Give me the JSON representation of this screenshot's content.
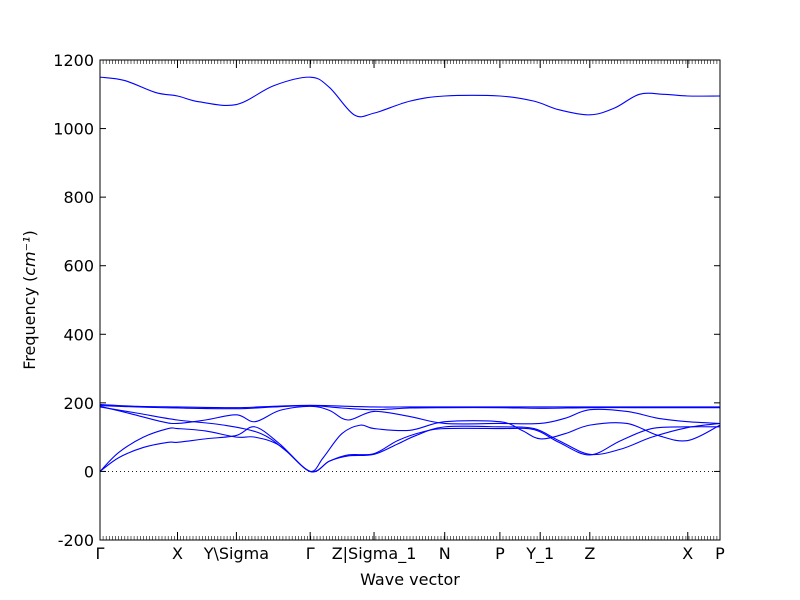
{
  "chart_data": {
    "type": "line",
    "title": "",
    "xlabel": "Wave vector",
    "ylabel": "Frequency",
    "ylabel_unit": "cm⁻¹",
    "ylim": [
      -200,
      1200
    ],
    "yticks": [
      -200,
      0,
      200,
      400,
      600,
      800,
      1000,
      1200
    ],
    "xlim": [
      0,
      1
    ],
    "grid": false,
    "legend": "none",
    "line_color": "#0000ff",
    "zero_line": true,
    "high_symmetry_points": [
      {
        "label": "Γ",
        "x": 0.0
      },
      {
        "label": "X",
        "x": 0.125
      },
      {
        "label": "Y\\Sigma",
        "x": 0.22
      },
      {
        "label": "Γ",
        "x": 0.339
      },
      {
        "label": "Z|Sigma_1",
        "x": 0.442
      },
      {
        "label": "N",
        "x": 0.556
      },
      {
        "label": "P",
        "x": 0.645
      },
      {
        "label": "Y_1",
        "x": 0.71
      },
      {
        "label": "Z",
        "x": 0.79
      },
      {
        "label": "X",
        "x": 0.948
      },
      {
        "label": "P",
        "x": 1.0
      }
    ],
    "series": [
      {
        "values": [
          [
            0,
            1150
          ],
          [
            0.04,
            1140
          ],
          [
            0.09,
            1105
          ],
          [
            0.125,
            1095
          ],
          [
            0.16,
            1078
          ],
          [
            0.22,
            1070
          ],
          [
            0.28,
            1125
          ],
          [
            0.339,
            1150
          ],
          [
            0.37,
            1120
          ],
          [
            0.41,
            1040
          ],
          [
            0.442,
            1045
          ],
          [
            0.5,
            1080
          ],
          [
            0.556,
            1095
          ],
          [
            0.645,
            1095
          ],
          [
            0.7,
            1080
          ],
          [
            0.74,
            1055
          ],
          [
            0.79,
            1040
          ],
          [
            0.83,
            1060
          ],
          [
            0.87,
            1100
          ],
          [
            0.91,
            1100
          ],
          [
            0.948,
            1095
          ],
          [
            1.0,
            1095
          ]
        ]
      },
      {
        "values": [
          [
            0,
            195
          ],
          [
            0.06,
            190
          ],
          [
            0.125,
            188
          ],
          [
            0.22,
            186
          ],
          [
            0.28,
            190
          ],
          [
            0.339,
            193
          ],
          [
            0.4,
            190
          ],
          [
            0.442,
            188
          ],
          [
            0.5,
            188
          ],
          [
            0.556,
            188
          ],
          [
            0.645,
            188
          ],
          [
            0.71,
            188
          ],
          [
            0.79,
            188
          ],
          [
            0.87,
            188
          ],
          [
            0.948,
            188
          ],
          [
            1.0,
            188
          ]
        ]
      },
      {
        "values": [
          [
            0,
            192
          ],
          [
            0.06,
            188
          ],
          [
            0.125,
            185
          ],
          [
            0.22,
            183
          ],
          [
            0.28,
            188
          ],
          [
            0.339,
            192
          ],
          [
            0.39,
            185
          ],
          [
            0.442,
            180
          ],
          [
            0.5,
            185
          ],
          [
            0.556,
            186
          ],
          [
            0.645,
            186
          ],
          [
            0.71,
            184
          ],
          [
            0.79,
            186
          ],
          [
            0.87,
            186
          ],
          [
            0.948,
            186
          ],
          [
            1.0,
            186
          ]
        ]
      },
      {
        "values": [
          [
            0,
            190
          ],
          [
            0.05,
            168
          ],
          [
            0.1,
            145
          ],
          [
            0.125,
            140
          ],
          [
            0.17,
            150
          ],
          [
            0.22,
            165
          ],
          [
            0.25,
            145
          ],
          [
            0.29,
            178
          ],
          [
            0.339,
            190
          ],
          [
            0.37,
            178
          ],
          [
            0.4,
            150
          ],
          [
            0.442,
            175
          ],
          [
            0.5,
            160
          ],
          [
            0.556,
            140
          ],
          [
            0.645,
            140
          ],
          [
            0.71,
            140
          ],
          [
            0.75,
            155
          ],
          [
            0.79,
            180
          ],
          [
            0.85,
            175
          ],
          [
            0.9,
            155
          ],
          [
            0.948,
            145
          ],
          [
            1.0,
            140
          ]
        ]
      },
      {
        "values": [
          [
            0,
            188
          ],
          [
            0.06,
            170
          ],
          [
            0.125,
            150
          ],
          [
            0.2,
            135
          ],
          [
            0.26,
            110
          ],
          [
            0.3,
            60
          ],
          [
            0.339,
            0
          ],
          [
            0.36,
            40
          ],
          [
            0.39,
            110
          ],
          [
            0.42,
            135
          ],
          [
            0.442,
            125
          ],
          [
            0.5,
            120
          ],
          [
            0.556,
            145
          ],
          [
            0.645,
            145
          ],
          [
            0.68,
            120
          ],
          [
            0.71,
            95
          ],
          [
            0.75,
            110
          ],
          [
            0.79,
            135
          ],
          [
            0.85,
            140
          ],
          [
            0.9,
            105
          ],
          [
            0.948,
            90
          ],
          [
            1.0,
            135
          ]
        ]
      },
      {
        "values": [
          [
            0,
            0
          ],
          [
            0.03,
            40
          ],
          [
            0.07,
            70
          ],
          [
            0.11,
            85
          ],
          [
            0.125,
            85
          ],
          [
            0.17,
            95
          ],
          [
            0.22,
            105
          ],
          [
            0.25,
            130
          ],
          [
            0.29,
            80
          ],
          [
            0.339,
            0
          ],
          [
            0.37,
            30
          ],
          [
            0.4,
            45
          ],
          [
            0.442,
            50
          ],
          [
            0.48,
            80
          ],
          [
            0.51,
            105
          ],
          [
            0.556,
            130
          ],
          [
            0.645,
            130
          ],
          [
            0.7,
            125
          ],
          [
            0.74,
            90
          ],
          [
            0.79,
            50
          ],
          [
            0.84,
            65
          ],
          [
            0.89,
            100
          ],
          [
            0.948,
            128
          ],
          [
            1.0,
            140
          ]
        ]
      },
      {
        "values": [
          [
            0,
            0
          ],
          [
            0.03,
            55
          ],
          [
            0.07,
            100
          ],
          [
            0.11,
            125
          ],
          [
            0.125,
            125
          ],
          [
            0.17,
            118
          ],
          [
            0.22,
            100
          ],
          [
            0.25,
            100
          ],
          [
            0.29,
            75
          ],
          [
            0.339,
            0
          ],
          [
            0.37,
            30
          ],
          [
            0.4,
            48
          ],
          [
            0.442,
            52
          ],
          [
            0.48,
            90
          ],
          [
            0.52,
            115
          ],
          [
            0.556,
            125
          ],
          [
            0.645,
            125
          ],
          [
            0.7,
            122
          ],
          [
            0.74,
            85
          ],
          [
            0.79,
            48
          ],
          [
            0.84,
            90
          ],
          [
            0.89,
            125
          ],
          [
            0.948,
            130
          ],
          [
            1.0,
            130
          ]
        ]
      }
    ]
  }
}
